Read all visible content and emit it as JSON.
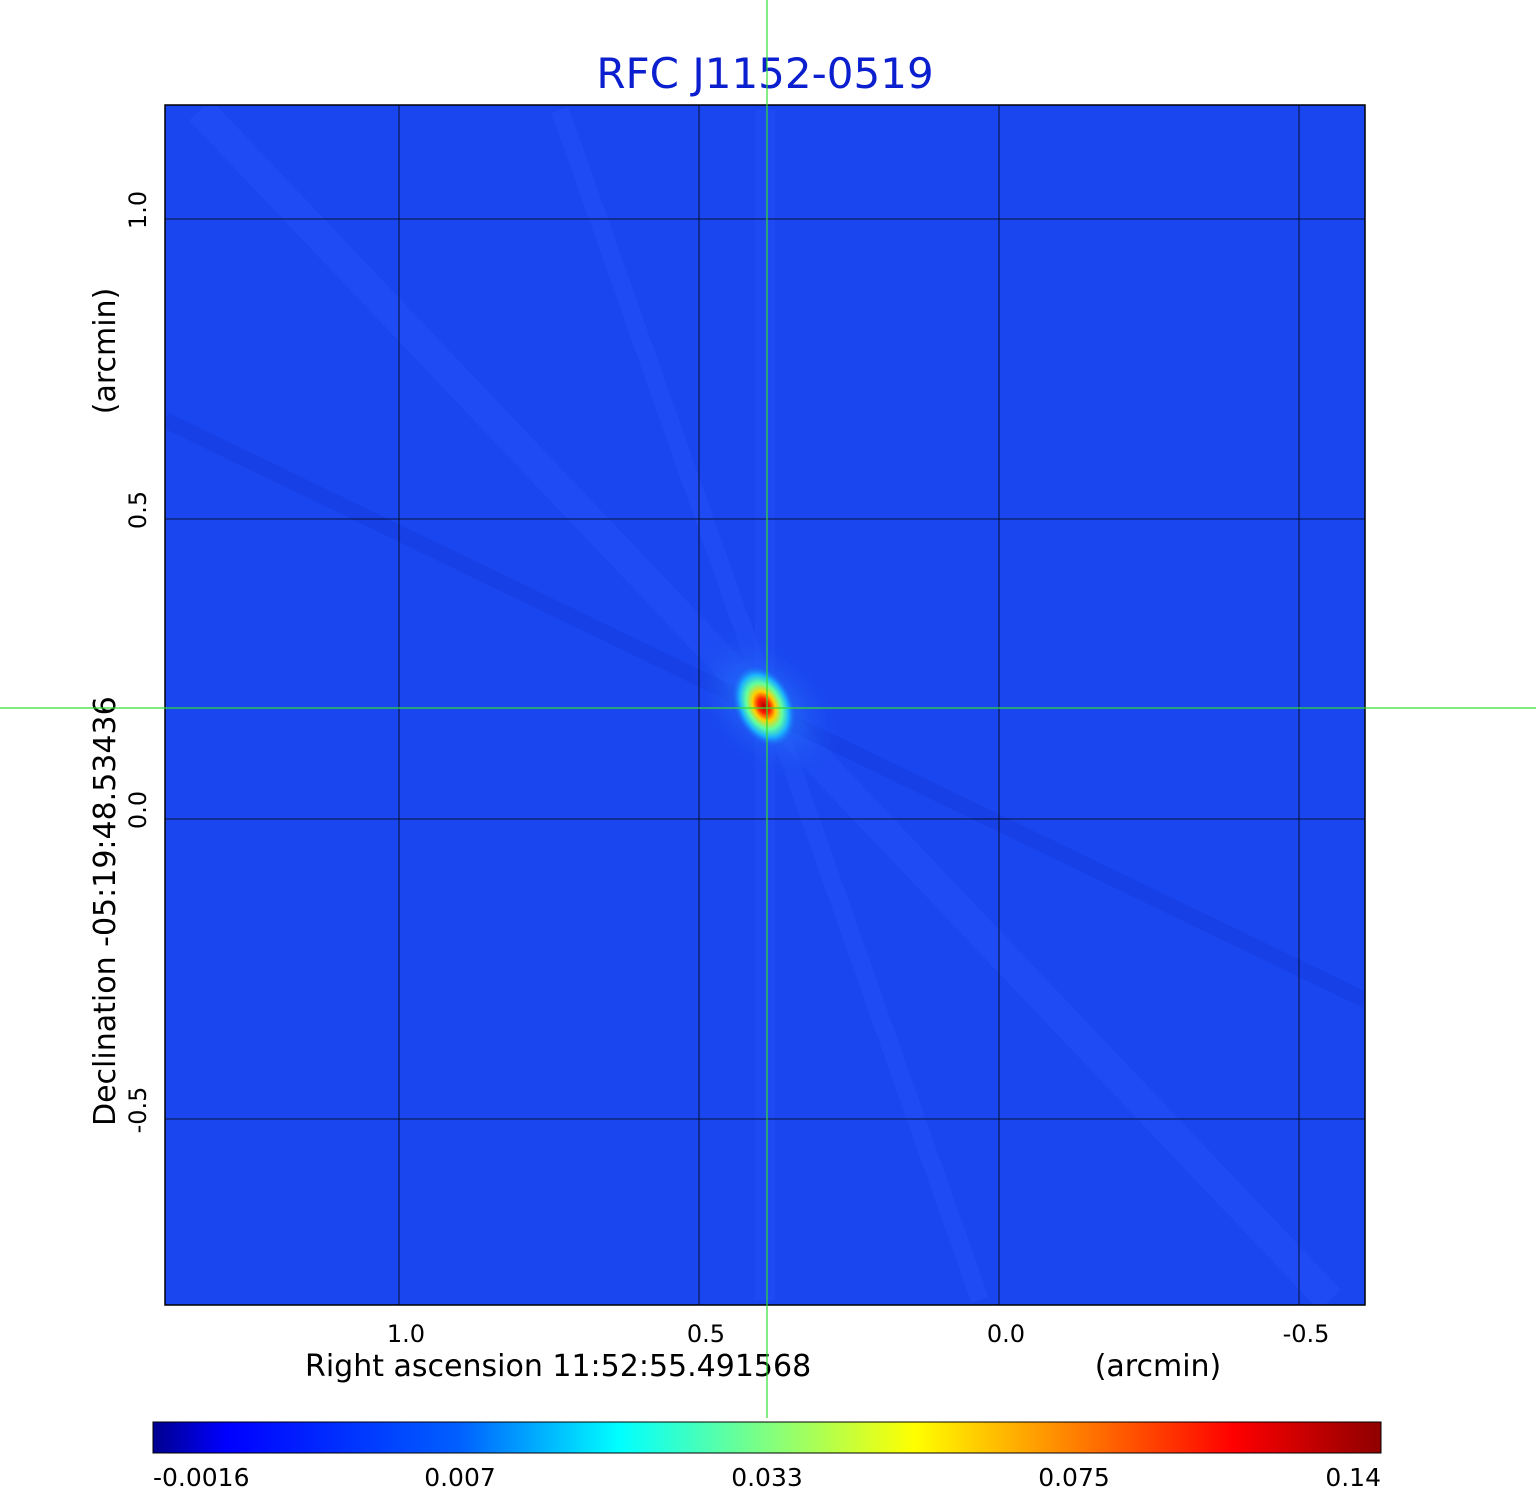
{
  "chart_data": {
    "type": "heatmap",
    "title": "RFC J1152-0519",
    "xlabel": "Right ascension  11:52:55.491568",
    "xunit": "(arcmin)",
    "ylabel": "Declination  -05:19:48.53436",
    "yunit": "(arcmin)",
    "xlim": [
      1.39,
      -0.61
    ],
    "ylim": [
      -0.81,
      1.19
    ],
    "x_ticks": [
      {
        "value": 1.0,
        "label": "1.0"
      },
      {
        "value": 0.5,
        "label": "0.5"
      },
      {
        "value": 0.0,
        "label": "0.0"
      },
      {
        "value": -0.5,
        "label": "-0.5"
      }
    ],
    "y_ticks": [
      {
        "value": 1.0,
        "label": "1.0"
      },
      {
        "value": 0.5,
        "label": "0.5"
      },
      {
        "value": 0.0,
        "label": "0.0"
      },
      {
        "value": -0.5,
        "label": "-0.5"
      }
    ],
    "grid": true,
    "colormap": "jet",
    "colorbar": {
      "ticks": [
        "-0.0016",
        "0.007",
        "0.033",
        "0.075",
        "0.14"
      ],
      "min": -0.0016,
      "max": 0.14
    },
    "source_peak": {
      "x": 0.39,
      "y": 0.19,
      "value": 0.14
    },
    "crosshair": {
      "x": 0.384,
      "y": 0.192,
      "color": "#33dd33"
    }
  },
  "colors": {
    "title": "#0b1fcf",
    "background_field": "#1a46f0",
    "grid": "#000000",
    "crosshair": "#33dd33"
  }
}
